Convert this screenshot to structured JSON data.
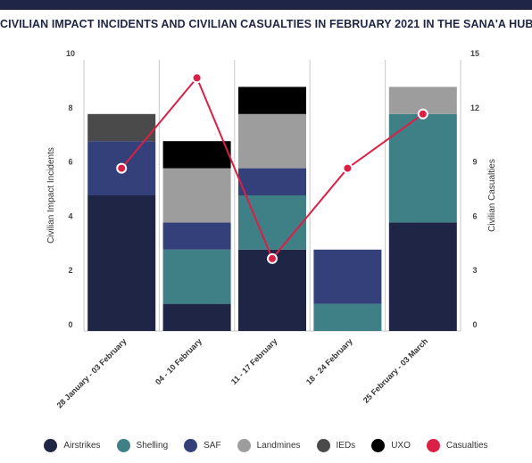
{
  "title": "CIVILIAN IMPACT INCIDENTS AND CIVILIAN CASUALTIES IN FEBRUARY 2021 IN THE SANA'A HUB",
  "chart_data": {
    "type": "bar",
    "stacked": true,
    "categories": [
      "28 January - 03 February",
      "04 - 10 February",
      "11 - 17 February",
      "18 - 24 February",
      "25 February - 03 March"
    ],
    "ylabel": "Civilian Impact Incidents",
    "ylim": [
      0,
      10
    ],
    "yticks": [
      0,
      2,
      4,
      6,
      8,
      10
    ],
    "y2label": "Civilian Casualties",
    "y2lim": [
      0,
      15
    ],
    "y2ticks": [
      0,
      3,
      6,
      9,
      12,
      15
    ],
    "grid": "vertical",
    "legend_position": "bottom",
    "series": [
      {
        "name": "Airstrikes",
        "color": "#1f2544",
        "values": [
          5,
          1,
          3,
          0,
          4
        ]
      },
      {
        "name": "Shelling",
        "color": "#3f7f86",
        "values": [
          0,
          2,
          2,
          1,
          4
        ]
      },
      {
        "name": "SAF",
        "color": "#33407a",
        "values": [
          2,
          1,
          1,
          2,
          0
        ]
      },
      {
        "name": "Landmines",
        "color": "#9d9d9d",
        "values": [
          0,
          2,
          2,
          0,
          1
        ]
      },
      {
        "name": "IEDs",
        "color": "#4a4a4a",
        "values": [
          1,
          0,
          0,
          0,
          0
        ]
      },
      {
        "name": "UXO",
        "color": "#000000",
        "values": [
          0,
          1,
          1,
          0,
          0
        ]
      }
    ],
    "line_series": {
      "name": "Casualties",
      "color": "#dc1f45",
      "axis": "right",
      "values": [
        9,
        14,
        4,
        9,
        12
      ]
    }
  }
}
